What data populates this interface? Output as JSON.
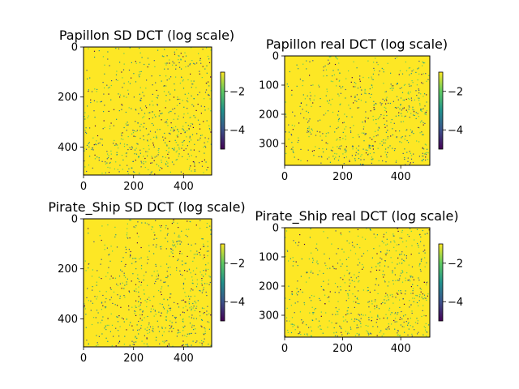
{
  "figure": {
    "background": "#ffffff"
  },
  "colormap": {
    "name": "viridis",
    "stops": [
      "#440154",
      "#3b528b",
      "#21918c",
      "#5ec962",
      "#fde725"
    ]
  },
  "chart_data": [
    {
      "type": "heatmap",
      "title": "Papillon SD DCT (log scale)",
      "xlim": [
        0,
        512
      ],
      "ylim": [
        512,
        0
      ],
      "xticks": [
        0,
        200,
        400
      ],
      "yticks": [
        0,
        200,
        400
      ],
      "color_range": [
        -5,
        -1
      ],
      "colorbar_ticks": [
        -2,
        -4
      ],
      "grid": false
    },
    {
      "type": "heatmap",
      "title": "Papillon real DCT (log scale)",
      "xlim": [
        0,
        500
      ],
      "ylim": [
        375,
        0
      ],
      "xticks": [
        0,
        200,
        400
      ],
      "yticks": [
        0,
        100,
        200,
        300
      ],
      "color_range": [
        -5,
        -1
      ],
      "colorbar_ticks": [
        -2,
        -4
      ],
      "grid": false
    },
    {
      "type": "heatmap",
      "title": "Pirate_Ship SD DCT (log scale)",
      "xlim": [
        0,
        512
      ],
      "ylim": [
        512,
        0
      ],
      "xticks": [
        0,
        200,
        400
      ],
      "yticks": [
        0,
        200,
        400
      ],
      "color_range": [
        -5,
        -1
      ],
      "colorbar_ticks": [
        -2,
        -4
      ],
      "grid": false
    },
    {
      "type": "heatmap",
      "title": "Pirate_Ship real DCT (log scale)",
      "xlim": [
        0,
        500
      ],
      "ylim": [
        375,
        0
      ],
      "xticks": [
        0,
        200,
        400
      ],
      "yticks": [
        0,
        100,
        200,
        300
      ],
      "color_range": [
        -5,
        -1
      ],
      "colorbar_ticks": [
        -2,
        -4
      ],
      "grid": false
    }
  ]
}
